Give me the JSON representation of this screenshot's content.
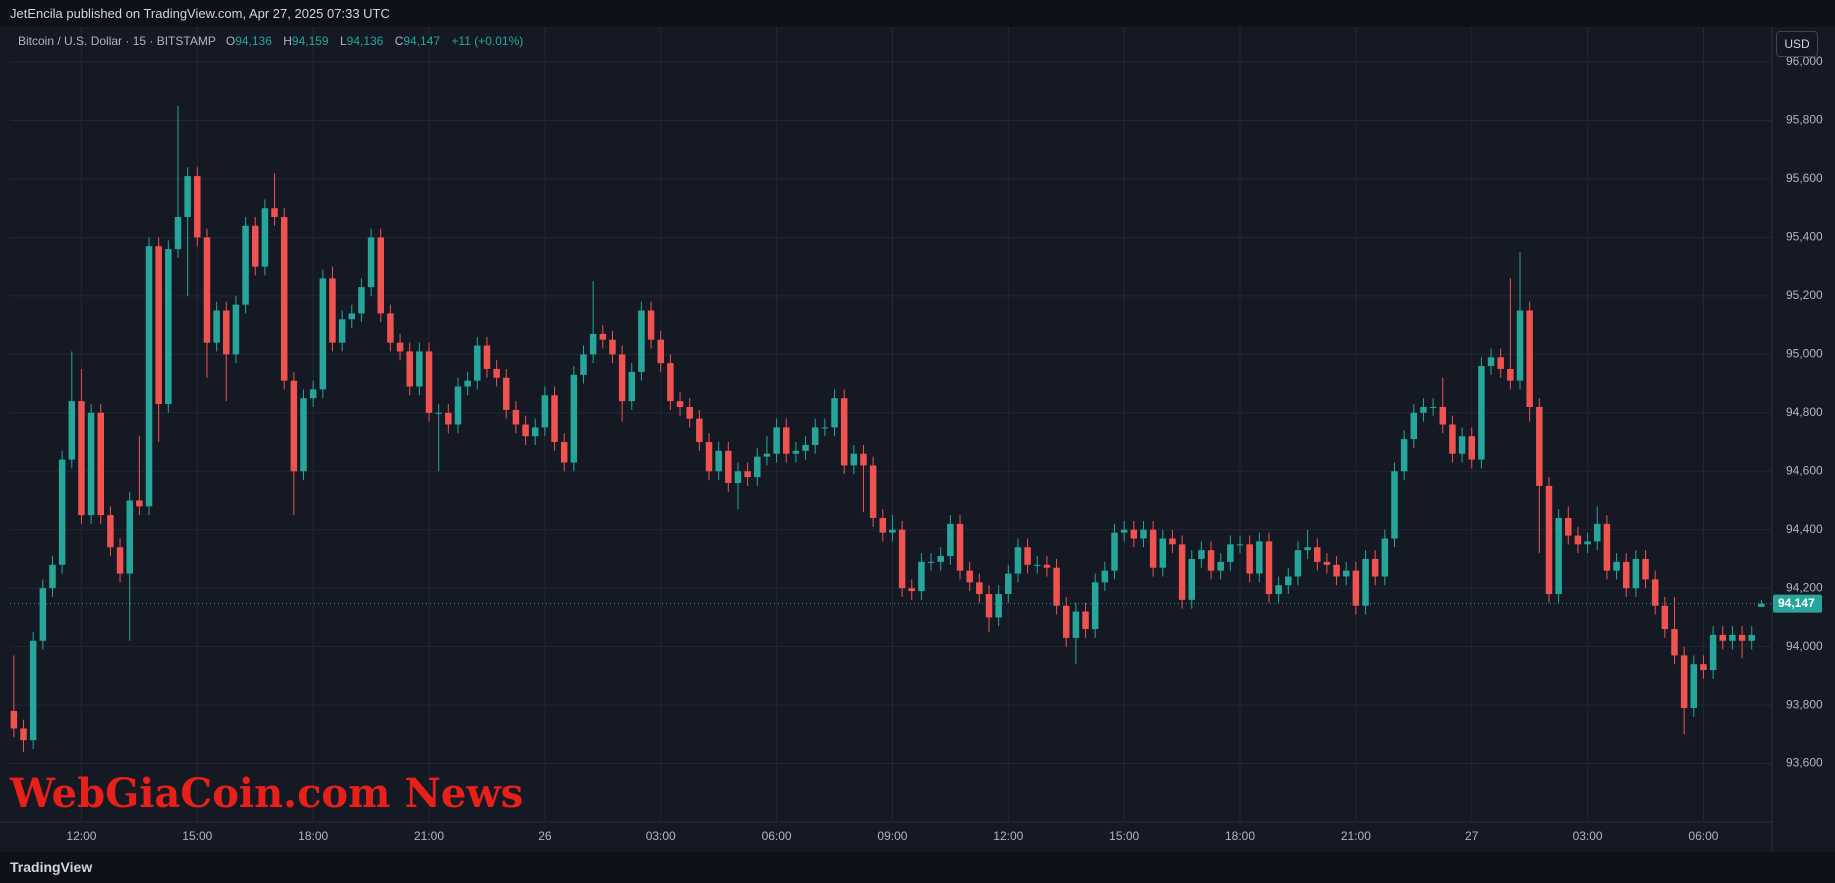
{
  "header": {
    "publisher": "JetEncila published on TradingView.com, Apr 27, 2025 07:33 UTC"
  },
  "footer": {
    "brand": "TradingView"
  },
  "watermark": "WebGiaCoin.com News",
  "currency_button": "USD",
  "legend": {
    "symbol": "Bitcoin / U.S. Dollar · 15 · BITSTAMP",
    "o_label": "O",
    "o": "94,136",
    "h_label": "H",
    "h": "94,159",
    "l_label": "L",
    "l": "94,136",
    "c_label": "C",
    "c": "94,147",
    "change": "+11 (+0.01%)"
  },
  "chart_data": {
    "type": "candlestick",
    "up_color": "#26a69a",
    "down_color": "#ef5350",
    "grid": true,
    "ylim": [
      93400,
      96120
    ],
    "xlim": [
      -0.4,
      182.1
    ],
    "yticks": [
      {
        "value": 93600,
        "label": "93,600"
      },
      {
        "value": 93800,
        "label": "93,800"
      },
      {
        "value": 94000,
        "label": "94,000"
      },
      {
        "value": 94200,
        "label": "94,200"
      },
      {
        "value": 94400,
        "label": "94,400"
      },
      {
        "value": 94600,
        "label": "94,600"
      },
      {
        "value": 94800,
        "label": "94,800"
      },
      {
        "value": 95000,
        "label": "95,000"
      },
      {
        "value": 95200,
        "label": "95,200"
      },
      {
        "value": 95400,
        "label": "95,400"
      },
      {
        "value": 95600,
        "label": "95,600"
      },
      {
        "value": 95800,
        "label": "95,800"
      },
      {
        "value": 96000,
        "label": "96,000"
      }
    ],
    "xticks": [
      {
        "value": 7,
        "label": "12:00"
      },
      {
        "value": 19,
        "label": "15:00"
      },
      {
        "value": 31,
        "label": "18:00"
      },
      {
        "value": 43,
        "label": "21:00"
      },
      {
        "value": 55,
        "label": "26"
      },
      {
        "value": 67,
        "label": "03:00"
      },
      {
        "value": 79,
        "label": "06:00"
      },
      {
        "value": 91,
        "label": "09:00"
      },
      {
        "value": 103,
        "label": "12:00"
      },
      {
        "value": 115,
        "label": "15:00"
      },
      {
        "value": 127,
        "label": "18:00"
      },
      {
        "value": 139,
        "label": "21:00"
      },
      {
        "value": 151,
        "label": "27"
      },
      {
        "value": 163,
        "label": "03:00"
      },
      {
        "value": 175,
        "label": "06:00"
      }
    ],
    "last_price": {
      "value": 94147,
      "label": "94,147"
    },
    "candles": [
      [
        93780,
        93970,
        93690,
        93720
      ],
      [
        93720,
        93750,
        93640,
        93680
      ],
      [
        93680,
        94050,
        93650,
        94020
      ],
      [
        94020,
        94230,
        93990,
        94200
      ],
      [
        94200,
        94310,
        94170,
        94280
      ],
      [
        94280,
        94670,
        94250,
        94640
      ],
      [
        94640,
        95010,
        94610,
        94840
      ],
      [
        94840,
        94950,
        94420,
        94450
      ],
      [
        94450,
        94830,
        94420,
        94800
      ],
      [
        94800,
        94830,
        94420,
        94450
      ],
      [
        94450,
        94480,
        94310,
        94340
      ],
      [
        94340,
        94370,
        94220,
        94250
      ],
      [
        94250,
        94530,
        94020,
        94500
      ],
      [
        94500,
        94720,
        94450,
        94480
      ],
      [
        94480,
        95400,
        94450,
        95370
      ],
      [
        95370,
        95400,
        94700,
        94830
      ],
      [
        94830,
        95390,
        94800,
        95360
      ],
      [
        95360,
        95850,
        95330,
        95470
      ],
      [
        95470,
        95640,
        95200,
        95610
      ],
      [
        95610,
        95640,
        95370,
        95400
      ],
      [
        95400,
        95430,
        94920,
        95040
      ],
      [
        95040,
        95180,
        95010,
        95150
      ],
      [
        95150,
        95180,
        94840,
        95000
      ],
      [
        95000,
        95200,
        94970,
        95170
      ],
      [
        95170,
        95470,
        95140,
        95440
      ],
      [
        95440,
        95470,
        95270,
        95300
      ],
      [
        95300,
        95530,
        95270,
        95500
      ],
      [
        95500,
        95620,
        95440,
        95470
      ],
      [
        95470,
        95500,
        94880,
        94910
      ],
      [
        94910,
        94940,
        94450,
        94600
      ],
      [
        94600,
        94880,
        94570,
        94850
      ],
      [
        94850,
        94910,
        94820,
        94880
      ],
      [
        94880,
        95290,
        94850,
        95260
      ],
      [
        95260,
        95300,
        95010,
        95040
      ],
      [
        95040,
        95150,
        95010,
        95120
      ],
      [
        95120,
        95170,
        95090,
        95140
      ],
      [
        95140,
        95260,
        95110,
        95230
      ],
      [
        95230,
        95430,
        95200,
        95400
      ],
      [
        95400,
        95430,
        95110,
        95140
      ],
      [
        95140,
        95170,
        95010,
        95040
      ],
      [
        95040,
        95070,
        94980,
        95010
      ],
      [
        95010,
        95040,
        94860,
        94890
      ],
      [
        94890,
        95040,
        94860,
        95010
      ],
      [
        95010,
        95040,
        94770,
        94800
      ],
      [
        94800,
        94830,
        94600,
        94800
      ],
      [
        94800,
        94830,
        94730,
        94760
      ],
      [
        94760,
        94920,
        94730,
        94890
      ],
      [
        94890,
        94940,
        94860,
        94910
      ],
      [
        94910,
        95060,
        94880,
        95030
      ],
      [
        95030,
        95060,
        94920,
        94950
      ],
      [
        94950,
        94980,
        94890,
        94920
      ],
      [
        94920,
        94950,
        94780,
        94810
      ],
      [
        94810,
        94840,
        94730,
        94760
      ],
      [
        94760,
        94790,
        94690,
        94720
      ],
      [
        94720,
        94780,
        94690,
        94750
      ],
      [
        94750,
        94890,
        94720,
        94860
      ],
      [
        94860,
        94890,
        94670,
        94700
      ],
      [
        94700,
        94730,
        94600,
        94630
      ],
      [
        94630,
        94960,
        94600,
        94930
      ],
      [
        94930,
        95030,
        94900,
        95000
      ],
      [
        95000,
        95250,
        94970,
        95070
      ],
      [
        95070,
        95100,
        95020,
        95050
      ],
      [
        95050,
        95080,
        94970,
        95000
      ],
      [
        95000,
        95030,
        94770,
        94840
      ],
      [
        94840,
        94970,
        94810,
        94940
      ],
      [
        94940,
        95180,
        94910,
        95150
      ],
      [
        95150,
        95180,
        95020,
        95050
      ],
      [
        95050,
        95080,
        94940,
        94970
      ],
      [
        94970,
        95000,
        94810,
        94840
      ],
      [
        94840,
        94870,
        94790,
        94820
      ],
      [
        94820,
        94850,
        94750,
        94780
      ],
      [
        94780,
        94810,
        94670,
        94700
      ],
      [
        94700,
        94730,
        94570,
        94600
      ],
      [
        94600,
        94700,
        94570,
        94670
      ],
      [
        94670,
        94700,
        94530,
        94560
      ],
      [
        94560,
        94630,
        94470,
        94600
      ],
      [
        94600,
        94630,
        94550,
        94580
      ],
      [
        94580,
        94680,
        94550,
        94650
      ],
      [
        94650,
        94720,
        94620,
        94660
      ],
      [
        94660,
        94780,
        94630,
        94750
      ],
      [
        94750,
        94780,
        94630,
        94660
      ],
      [
        94660,
        94700,
        94630,
        94670
      ],
      [
        94670,
        94720,
        94640,
        94690
      ],
      [
        94690,
        94780,
        94660,
        94750
      ],
      [
        94750,
        94780,
        94720,
        94750
      ],
      [
        94750,
        94880,
        94720,
        94850
      ],
      [
        94850,
        94880,
        94590,
        94620
      ],
      [
        94620,
        94690,
        94590,
        94660
      ],
      [
        94660,
        94690,
        94460,
        94620
      ],
      [
        94620,
        94650,
        94410,
        94440
      ],
      [
        94440,
        94470,
        94360,
        94390
      ],
      [
        94390,
        94450,
        94360,
        94400
      ],
      [
        94400,
        94430,
        94170,
        94200
      ],
      [
        94200,
        94230,
        94160,
        94190
      ],
      [
        94190,
        94320,
        94160,
        94290
      ],
      [
        94290,
        94320,
        94260,
        94290
      ],
      [
        94290,
        94340,
        94260,
        94310
      ],
      [
        94310,
        94450,
        94280,
        94420
      ],
      [
        94420,
        94450,
        94230,
        94260
      ],
      [
        94260,
        94290,
        94190,
        94220
      ],
      [
        94220,
        94250,
        94150,
        94180
      ],
      [
        94180,
        94210,
        94050,
        94100
      ],
      [
        94100,
        94210,
        94070,
        94180
      ],
      [
        94180,
        94280,
        94150,
        94250
      ],
      [
        94250,
        94370,
        94220,
        94340
      ],
      [
        94340,
        94370,
        94250,
        94280
      ],
      [
        94280,
        94310,
        94250,
        94280
      ],
      [
        94280,
        94310,
        94240,
        94270
      ],
      [
        94270,
        94300,
        94110,
        94140
      ],
      [
        94140,
        94170,
        94000,
        94030
      ],
      [
        94030,
        94150,
        93940,
        94120
      ],
      [
        94120,
        94150,
        94030,
        94060
      ],
      [
        94060,
        94250,
        94030,
        94220
      ],
      [
        94220,
        94290,
        94190,
        94260
      ],
      [
        94260,
        94420,
        94230,
        94390
      ],
      [
        94390,
        94430,
        94360,
        94400
      ],
      [
        94400,
        94430,
        94340,
        94370
      ],
      [
        94370,
        94430,
        94340,
        94400
      ],
      [
        94400,
        94430,
        94240,
        94270
      ],
      [
        94270,
        94400,
        94240,
        94370
      ],
      [
        94370,
        94400,
        94320,
        94350
      ],
      [
        94350,
        94380,
        94130,
        94160
      ],
      [
        94160,
        94330,
        94130,
        94300
      ],
      [
        94300,
        94360,
        94270,
        94330
      ],
      [
        94330,
        94360,
        94230,
        94260
      ],
      [
        94260,
        94320,
        94230,
        94290
      ],
      [
        94290,
        94380,
        94260,
        94350
      ],
      [
        94350,
        94380,
        94320,
        94350
      ],
      [
        94350,
        94380,
        94220,
        94250
      ],
      [
        94250,
        94390,
        94220,
        94360
      ],
      [
        94360,
        94390,
        94150,
        94180
      ],
      [
        94180,
        94240,
        94150,
        94210
      ],
      [
        94210,
        94270,
        94180,
        94240
      ],
      [
        94240,
        94360,
        94210,
        94330
      ],
      [
        94330,
        94400,
        94300,
        94340
      ],
      [
        94340,
        94370,
        94260,
        94290
      ],
      [
        94290,
        94320,
        94250,
        94280
      ],
      [
        94280,
        94310,
        94210,
        94240
      ],
      [
        94240,
        94290,
        94210,
        94260
      ],
      [
        94260,
        94290,
        94110,
        94140
      ],
      [
        94140,
        94330,
        94110,
        94300
      ],
      [
        94300,
        94330,
        94210,
        94240
      ],
      [
        94240,
        94400,
        94210,
        94370
      ],
      [
        94370,
        94630,
        94340,
        94600
      ],
      [
        94600,
        94740,
        94570,
        94710
      ],
      [
        94710,
        94830,
        94680,
        94800
      ],
      [
        94800,
        94850,
        94770,
        94820
      ],
      [
        94820,
        94850,
        94790,
        94820
      ],
      [
        94820,
        94920,
        94730,
        94760
      ],
      [
        94760,
        94790,
        94630,
        94660
      ],
      [
        94660,
        94750,
        94630,
        94720
      ],
      [
        94720,
        94750,
        94610,
        94640
      ],
      [
        94640,
        94990,
        94610,
        94960
      ],
      [
        94960,
        95020,
        94930,
        94990
      ],
      [
        94990,
        95020,
        94920,
        94950
      ],
      [
        94950,
        95260,
        94880,
        94910
      ],
      [
        94910,
        95350,
        94880,
        95150
      ],
      [
        95150,
        95180,
        94770,
        94820
      ],
      [
        94820,
        94850,
        94320,
        94550
      ],
      [
        94550,
        94580,
        94150,
        94180
      ],
      [
        94180,
        94470,
        94150,
        94440
      ],
      [
        94440,
        94480,
        94350,
        94380
      ],
      [
        94380,
        94410,
        94320,
        94350
      ],
      [
        94350,
        94390,
        94320,
        94360
      ],
      [
        94360,
        94480,
        94330,
        94420
      ],
      [
        94420,
        94450,
        94230,
        94260
      ],
      [
        94260,
        94320,
        94230,
        94290
      ],
      [
        94290,
        94320,
        94170,
        94200
      ],
      [
        94200,
        94330,
        94170,
        94300
      ],
      [
        94300,
        94330,
        94200,
        94230
      ],
      [
        94230,
        94260,
        94110,
        94140
      ],
      [
        94140,
        94170,
        94030,
        94060
      ],
      [
        94060,
        94170,
        93940,
        93970
      ],
      [
        93970,
        94000,
        93700,
        93790
      ],
      [
        93790,
        93970,
        93760,
        93940
      ],
      [
        93940,
        93970,
        93890,
        93920
      ],
      [
        93920,
        94070,
        93890,
        94040
      ],
      [
        94040,
        94070,
        93990,
        94020
      ],
      [
        94020,
        94070,
        93990,
        94040
      ],
      [
        94040,
        94070,
        93960,
        94020
      ],
      [
        94020,
        94070,
        93990,
        94040
      ],
      [
        94136,
        94159,
        94136,
        94147
      ]
    ]
  }
}
